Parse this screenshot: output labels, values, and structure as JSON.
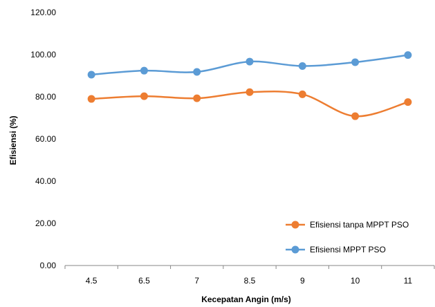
{
  "chart_data": {
    "type": "line",
    "title": "",
    "xlabel": "Kecepatan Angin (m/s)",
    "ylabel": "Efisiensi (%)",
    "categories": [
      "4.5",
      "6.5",
      "7",
      "8.5",
      "9",
      "10",
      "11"
    ],
    "ylim": [
      0,
      120
    ],
    "yticks": [
      "0.00",
      "20.00",
      "40.00",
      "60.00",
      "80.00",
      "100.00",
      "120.00"
    ],
    "grid": false,
    "legend_position": "bottom-right",
    "series": [
      {
        "name": "Efisiensi tanpa MPPT PSO",
        "values": [
          79.0,
          80.3,
          79.3,
          82.2,
          81.2,
          70.8,
          77.5
        ],
        "color": "#ED7D31"
      },
      {
        "name": "Efisiensi MPPT PSO",
        "values": [
          90.5,
          92.4,
          91.8,
          96.7,
          94.6,
          96.4,
          99.8
        ],
        "color": "#5B9BD5"
      }
    ]
  }
}
